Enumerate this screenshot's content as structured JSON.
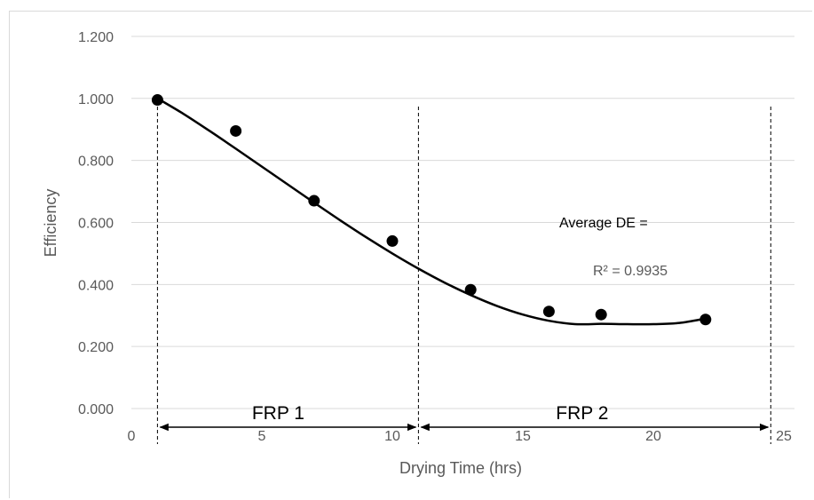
{
  "chart_data": {
    "type": "scatter",
    "title": "",
    "xlabel": "Drying Time (hrs)",
    "ylabel": "Efficiency",
    "xlim": [
      0,
      25
    ],
    "ylim": [
      0,
      1.2
    ],
    "x_ticks": [
      "0",
      "5",
      "10",
      "15",
      "20",
      "25"
    ],
    "y_ticks": [
      "0.000",
      "0.200",
      "0.400",
      "0.600",
      "0.800",
      "1.000",
      "1.200"
    ],
    "grid": "horizontal",
    "series": [
      {
        "points": [
          {
            "x": 1,
            "y": 0.995
          },
          {
            "x": 4,
            "y": 0.895
          },
          {
            "x": 7,
            "y": 0.67
          },
          {
            "x": 10,
            "y": 0.54
          },
          {
            "x": 13,
            "y": 0.383
          },
          {
            "x": 16,
            "y": 0.313
          },
          {
            "x": 18,
            "y": 0.303
          },
          {
            "x": 22,
            "y": 0.287
          }
        ],
        "color": "#000000"
      }
    ],
    "trendline": {
      "type": "polynomial",
      "r_squared_label": "R² = 0.9935",
      "points": [
        {
          "x": 1,
          "y": 1.0
        },
        {
          "x": 2,
          "y": 0.95
        },
        {
          "x": 3,
          "y": 0.895
        },
        {
          "x": 4,
          "y": 0.838
        },
        {
          "x": 5,
          "y": 0.78
        },
        {
          "x": 6,
          "y": 0.722
        },
        {
          "x": 7,
          "y": 0.664
        },
        {
          "x": 8,
          "y": 0.607
        },
        {
          "x": 9,
          "y": 0.552
        },
        {
          "x": 10,
          "y": 0.5
        },
        {
          "x": 11,
          "y": 0.451
        },
        {
          "x": 12,
          "y": 0.406
        },
        {
          "x": 13,
          "y": 0.366
        },
        {
          "x": 14,
          "y": 0.331
        },
        {
          "x": 15,
          "y": 0.303
        },
        {
          "x": 16,
          "y": 0.283
        },
        {
          "x": 17,
          "y": 0.272
        },
        {
          "x": 18,
          "y": 0.273
        },
        {
          "x": 19,
          "y": 0.272
        },
        {
          "x": 20,
          "y": 0.272
        },
        {
          "x": 21,
          "y": 0.276
        },
        {
          "x": 22,
          "y": 0.29
        }
      ]
    },
    "annotations": {
      "average_de": "Average DE =",
      "regions": [
        {
          "label": "FRP 1",
          "x_start": 1,
          "x_end": 11
        },
        {
          "label": "FRP 2",
          "x_start": 11,
          "x_end": 24.5
        }
      ]
    }
  }
}
